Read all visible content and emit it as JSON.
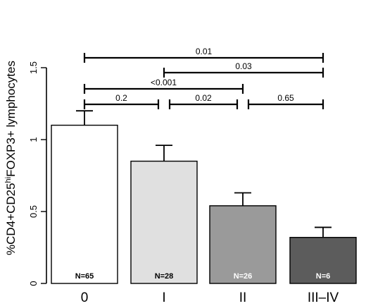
{
  "chart_data": {
    "type": "bar",
    "ylabel": {
      "prefix": "%CD4+CD25",
      "superscript": "hi",
      "suffix": "FOXP3+ lymphocytes"
    },
    "ylim": [
      0,
      1.5
    ],
    "yticks": [
      {
        "value": 0,
        "label": "0"
      },
      {
        "value": 0.5,
        "label": "0.5"
      },
      {
        "value": 1,
        "label": "1"
      },
      {
        "value": 1.5,
        "label": "1.5"
      }
    ],
    "categories": [
      "0",
      "I",
      "II",
      "III–IV"
    ],
    "values": [
      1.1,
      0.85,
      0.54,
      0.32
    ],
    "errors": [
      0.1,
      0.11,
      0.09,
      0.07
    ],
    "n_labels": [
      "N=65",
      "N=28",
      "N=26",
      "N=6"
    ],
    "colors": [
      "#ffffff",
      "#e0e0e0",
      "#9a9a9a",
      "#5c5c5c"
    ],
    "n_label_colors": [
      "#000000",
      "#000000",
      "#ffffff",
      "#ffffff"
    ],
    "comparisons": [
      {
        "from": 0,
        "to": 3,
        "label": "0.01",
        "level": 4
      },
      {
        "from": 1,
        "to": 3,
        "label": "0.03",
        "level": 3
      },
      {
        "from": 0,
        "to": 2,
        "label": "<0.001",
        "level": 2
      },
      {
        "from": 0,
        "to": 1,
        "label": "0.2",
        "level": 1
      },
      {
        "from": 1,
        "to": 2,
        "label": "0.02",
        "level": 1
      },
      {
        "from": 2,
        "to": 3,
        "label": "0.65",
        "level": 1
      }
    ]
  }
}
